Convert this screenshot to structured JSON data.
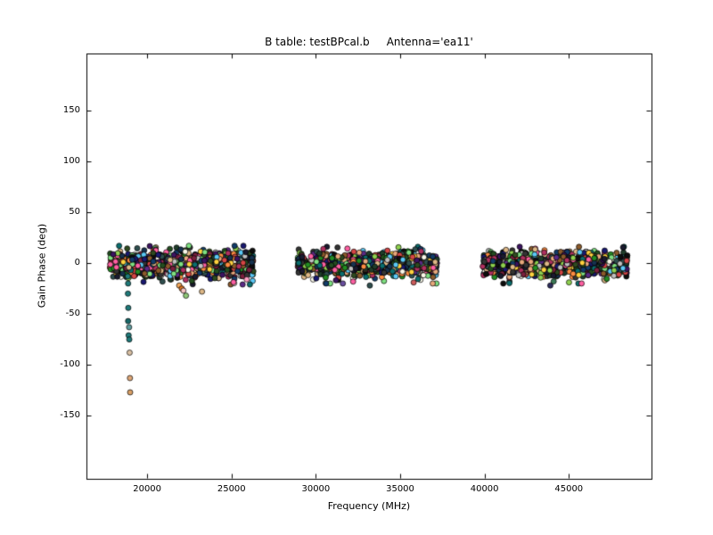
{
  "chart_data": {
    "type": "scatter",
    "marker": "circle",
    "title": "B table: testBPcal.b     Antenna='ea11'",
    "xlabel": "Frequency (MHz)",
    "ylabel": "Gain Phase (deg)",
    "xlim": [
      16400,
      49900
    ],
    "ylim": [
      -212,
      206
    ],
    "xticks": [
      20000,
      25000,
      30000,
      35000,
      40000,
      45000
    ],
    "yticks": [
      -150,
      -100,
      -50,
      0,
      50,
      100,
      150
    ],
    "grid": false,
    "legend": "none",
    "background_color": "#ffffff",
    "frame_color": "#000000",
    "edge_color": "#000000",
    "point_radius": 3,
    "seed": 42,
    "palette": [
      "#1a1a2e",
      "#16324f",
      "#0b6e6e",
      "#2e4a1f",
      "#343434",
      "#5b2a86",
      "#7a1f3d",
      "#234d20",
      "#123c69",
      "#3c1361",
      "#ff8c42",
      "#ffd23f",
      "#ff5fa2",
      "#7ee081",
      "#5bc8f5",
      "#f9f7e8",
      "#e8a87c",
      "#c0c0c0",
      "#d64545",
      "#8fd14f",
      "#1f3d2a",
      "#0d0d0d",
      "#2f4f4f",
      "#8b5a2b",
      "#deb887",
      "#b03060",
      "#228b22",
      "#191970"
    ],
    "bands": [
      {
        "x_min": 17750,
        "x_max": 26300,
        "n": 1200,
        "columns": 48,
        "x_jitter": 35,
        "y_center": -1,
        "y_sigma": 5.5,
        "y_clip": 17
      },
      {
        "x_min": 28900,
        "x_max": 37200,
        "n": 900,
        "columns": 46,
        "x_jitter": 35,
        "y_center": -1,
        "y_sigma": 5.5,
        "y_clip": 16
      },
      {
        "x_min": 39900,
        "x_max": 48500,
        "n": 900,
        "columns": 46,
        "x_jitter": 35,
        "y_center": -1,
        "y_sigma": 5.5,
        "y_clip": 16
      }
    ],
    "outliers": [
      {
        "x": 18850,
        "y": -13,
        "color": "#1f7a7a"
      },
      {
        "x": 18870,
        "y": -20,
        "color": "#1f7a7a"
      },
      {
        "x": 18860,
        "y": -30,
        "color": "#1f7a7a"
      },
      {
        "x": 18880,
        "y": -44,
        "color": "#1f7a7a"
      },
      {
        "x": 18870,
        "y": -57,
        "color": "#176969"
      },
      {
        "x": 18930,
        "y": -63,
        "color": "#5f9ea0"
      },
      {
        "x": 18900,
        "y": -71,
        "color": "#1f7a7a"
      },
      {
        "x": 18940,
        "y": -75,
        "color": "#1f7a7a"
      },
      {
        "x": 18960,
        "y": -88,
        "color": "#d9c0a3"
      },
      {
        "x": 18980,
        "y": -113,
        "color": "#e0a878"
      },
      {
        "x": 18990,
        "y": -127,
        "color": "#d9a066"
      },
      {
        "x": 21900,
        "y": -22,
        "color": "#f2a65a"
      },
      {
        "x": 22050,
        "y": -25,
        "color": "#e87820"
      },
      {
        "x": 22150,
        "y": -27,
        "color": "#f4c2c2"
      },
      {
        "x": 22300,
        "y": -32,
        "color": "#90c978"
      },
      {
        "x": 23250,
        "y": -28,
        "color": "#deb887"
      },
      {
        "x": 25900,
        "y": -16,
        "color": "#ff9ec4"
      },
      {
        "x": 31600,
        "y": -20,
        "color": "#6a4fa0"
      },
      {
        "x": 33200,
        "y": -22,
        "color": "#2f4f4f"
      },
      {
        "x": 35800,
        "y": -19,
        "color": "#cd5c5c"
      },
      {
        "x": 43900,
        "y": -22,
        "color": "#2e2e5e"
      },
      {
        "x": 44100,
        "y": -18,
        "color": "#3b7a57"
      }
    ]
  }
}
